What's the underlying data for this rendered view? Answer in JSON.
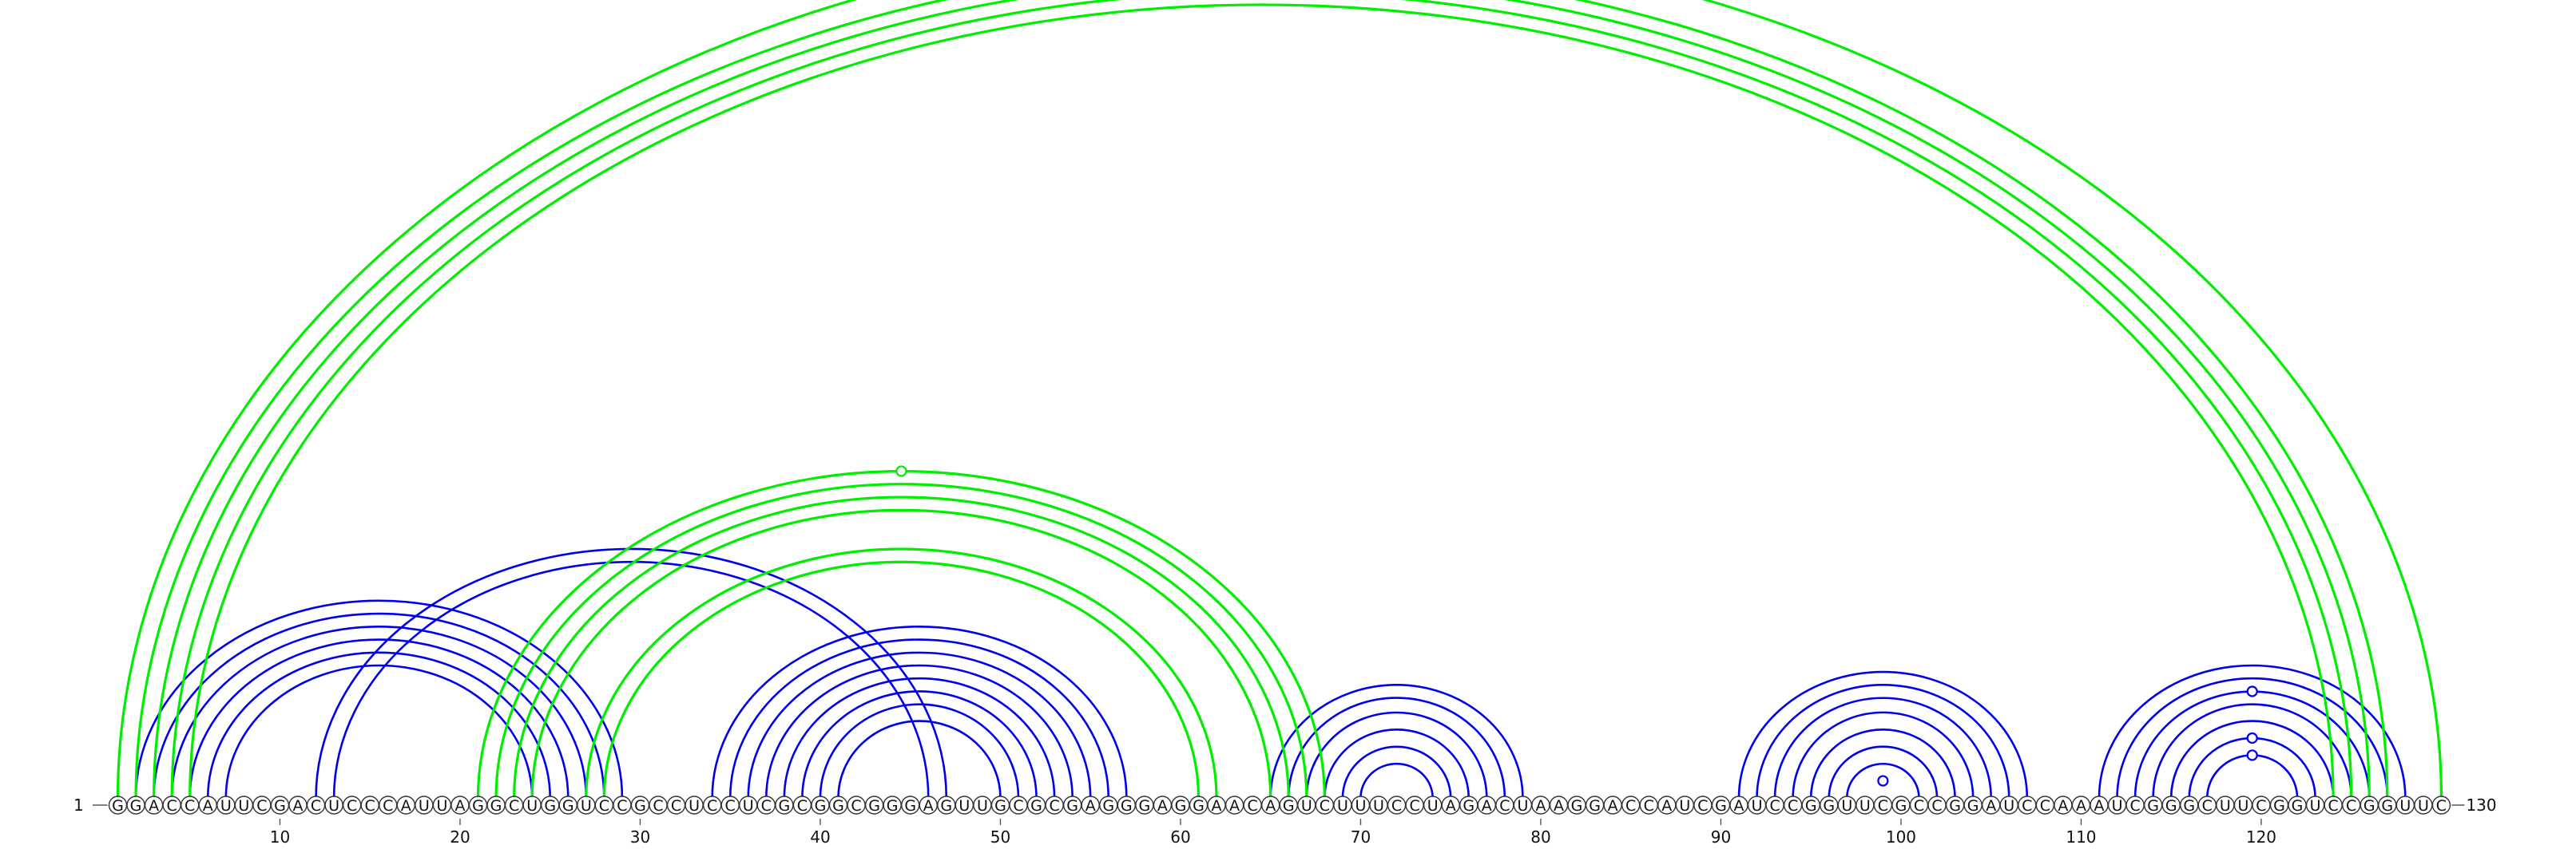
{
  "sequence": "GGACCAUUCGACUCCCAUUAGGCUGGUCCGCCUCCUCGCGGCGGGAGUUGCGCGAGGGAGGAACAGUCUUUCCUAGACUAAGGACCAUCGAUCCGGUUCGCCGGAUCCAAAUCGGGCUUCGGUCCGGUUC",
  "start_label": "1",
  "end_label": "130",
  "ticks": [
    "10",
    "20",
    "30",
    "40",
    "50",
    "60",
    "70",
    "80",
    "90",
    "100",
    "110",
    "120"
  ],
  "colors": {
    "nested_pairs": "#0000ee",
    "pseudoknot_pairs": "#00ee00"
  },
  "nested_helices": [
    {
      "i": 2,
      "j": 29,
      "n": 6,
      "note": "blue helix 2-7 / 24-29"
    },
    {
      "i": 12,
      "j": 47,
      "n": 2,
      "note": "blue long helix"
    },
    {
      "i": 34,
      "j": 57,
      "n": 8,
      "note": "blue helix 34-41 / 50-57"
    },
    {
      "i": 65,
      "j": 79,
      "n": 6,
      "note": "blue hairpin 65-70 / 74-79"
    },
    {
      "i": 91,
      "j": 107,
      "n": 7,
      "note": "blue hairpin 91-97 / 101-107"
    },
    {
      "i": 111,
      "j": 128,
      "n": 7,
      "note": "blue hairpin 111-117 / 122-128"
    }
  ],
  "pseudoknot_helices": [
    {
      "i": 1,
      "j": 130,
      "n": 1
    },
    {
      "i": 2,
      "j": 127,
      "n": 4
    },
    {
      "i": 21,
      "j": 68,
      "n": 4
    },
    {
      "i": 27,
      "j": 62,
      "n": 2
    }
  ],
  "markers": [
    {
      "i": 1,
      "j": 130,
      "color": "pseudoknot_pairs"
    },
    {
      "i": 21,
      "j": 68,
      "color": "pseudoknot_pairs"
    },
    {
      "i": 98,
      "j": 100,
      "color": "nested_pairs"
    },
    {
      "i": 117,
      "j": 122,
      "color": "nested_pairs"
    },
    {
      "i": 116,
      "j": 123,
      "color": "nested_pairs"
    },
    {
      "i": 113,
      "j": 126,
      "color": "nested_pairs"
    }
  ]
}
